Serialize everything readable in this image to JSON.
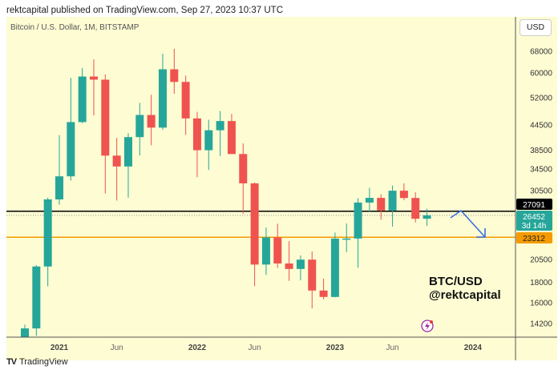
{
  "header": {
    "published": "rektcapital published on TradingView.com, Sep 27, 2023 10:37 UTC"
  },
  "chart": {
    "symbol": "Bitcoin / U.S. Dollar, 1M, BITSTAMP",
    "currency_button": "USD",
    "annotation_line1": "BTC/USD",
    "annotation_line2": "@rektcapital",
    "footer_brand": "TradingView"
  },
  "chart_data": {
    "type": "candlestick",
    "scale": "log",
    "ylim": [
      13500,
      72000
    ],
    "price_ticks": [
      "68000",
      "60000",
      "52000",
      "44500",
      "38500",
      "34500",
      "30500",
      "20500",
      "18000",
      "16000",
      "14200"
    ],
    "x_ticks": [
      {
        "label": "2021",
        "month": "2021-01"
      },
      {
        "label": "Jun",
        "month": "2021-06"
      },
      {
        "label": "2022",
        "month": "2022-01"
      },
      {
        "label": "Jun",
        "month": "2022-06"
      },
      {
        "label": "2023",
        "month": "2023-01"
      },
      {
        "label": "Jun",
        "month": "2023-06"
      },
      {
        "label": "2024",
        "month": "2024-01"
      }
    ],
    "candles": [
      {
        "m": "2020-10",
        "o": 10780,
        "h": 14100,
        "l": 10380,
        "c": 13800
      },
      {
        "m": "2020-11",
        "o": 13800,
        "h": 19860,
        "l": 13220,
        "c": 19710
      },
      {
        "m": "2020-12",
        "o": 19710,
        "h": 29300,
        "l": 17580,
        "c": 28990
      },
      {
        "m": "2021-01",
        "o": 28990,
        "h": 41950,
        "l": 28130,
        "c": 33110
      },
      {
        "m": "2021-02",
        "o": 33110,
        "h": 58350,
        "l": 32300,
        "c": 45240
      },
      {
        "m": "2021-03",
        "o": 45240,
        "h": 61780,
        "l": 44960,
        "c": 58800
      },
      {
        "m": "2021-04",
        "o": 58800,
        "h": 64900,
        "l": 47000,
        "c": 57750
      },
      {
        "m": "2021-05",
        "o": 57750,
        "h": 59500,
        "l": 30000,
        "c": 37300
      },
      {
        "m": "2021-06",
        "o": 37300,
        "h": 41300,
        "l": 28800,
        "c": 35040
      },
      {
        "m": "2021-07",
        "o": 35040,
        "h": 42450,
        "l": 29280,
        "c": 41490
      },
      {
        "m": "2021-08",
        "o": 41490,
        "h": 50500,
        "l": 37330,
        "c": 47130
      },
      {
        "m": "2021-09",
        "o": 47130,
        "h": 52920,
        "l": 39600,
        "c": 43820
      },
      {
        "m": "2021-10",
        "o": 43820,
        "h": 67000,
        "l": 43280,
        "c": 61300
      },
      {
        "m": "2021-11",
        "o": 61300,
        "h": 69000,
        "l": 53250,
        "c": 57000
      },
      {
        "m": "2021-12",
        "o": 57000,
        "h": 59100,
        "l": 42000,
        "c": 46200
      },
      {
        "m": "2022-01",
        "o": 46200,
        "h": 47990,
        "l": 32950,
        "c": 38480
      },
      {
        "m": "2022-02",
        "o": 38480,
        "h": 45850,
        "l": 34330,
        "c": 43160
      },
      {
        "m": "2022-03",
        "o": 43160,
        "h": 48200,
        "l": 37200,
        "c": 45510
      },
      {
        "m": "2022-04",
        "o": 45510,
        "h": 47440,
        "l": 37700,
        "c": 37640
      },
      {
        "m": "2022-05",
        "o": 37640,
        "h": 40000,
        "l": 26700,
        "c": 31800
      },
      {
        "m": "2022-06",
        "o": 31800,
        "h": 31960,
        "l": 17600,
        "c": 19930
      },
      {
        "m": "2022-07",
        "o": 19930,
        "h": 24660,
        "l": 18780,
        "c": 23300
      },
      {
        "m": "2022-08",
        "o": 23300,
        "h": 25200,
        "l": 19540,
        "c": 20050
      },
      {
        "m": "2022-09",
        "o": 20050,
        "h": 22800,
        "l": 18150,
        "c": 19430
      },
      {
        "m": "2022-10",
        "o": 19430,
        "h": 21000,
        "l": 18200,
        "c": 20500
      },
      {
        "m": "2022-11",
        "o": 20500,
        "h": 21480,
        "l": 15480,
        "c": 17160
      },
      {
        "m": "2022-12",
        "o": 17160,
        "h": 18380,
        "l": 16300,
        "c": 16540
      },
      {
        "m": "2023-01",
        "o": 16540,
        "h": 23960,
        "l": 16500,
        "c": 23140
      },
      {
        "m": "2023-02",
        "o": 23140,
        "h": 25250,
        "l": 21400,
        "c": 23150
      },
      {
        "m": "2023-03",
        "o": 23150,
        "h": 29200,
        "l": 19570,
        "c": 28470
      },
      {
        "m": "2023-04",
        "o": 28470,
        "h": 31000,
        "l": 26950,
        "c": 29250
      },
      {
        "m": "2023-05",
        "o": 29250,
        "h": 29840,
        "l": 25800,
        "c": 27200
      },
      {
        "m": "2023-06",
        "o": 27200,
        "h": 31400,
        "l": 24800,
        "c": 30480
      },
      {
        "m": "2023-07",
        "o": 30480,
        "h": 31800,
        "l": 28860,
        "c": 29230
      },
      {
        "m": "2023-08",
        "o": 29230,
        "h": 30200,
        "l": 25400,
        "c": 25940
      },
      {
        "m": "2023-09",
        "o": 25940,
        "h": 27480,
        "l": 24900,
        "c": 26452
      }
    ],
    "horizontal_lines": [
      {
        "price": 27091,
        "label": "27091",
        "color": "#000000"
      },
      {
        "price": 23312,
        "label": "23312",
        "color": "#f59a00"
      }
    ],
    "last_price": {
      "label": "26452",
      "countdown": "3d 14h",
      "color": "#26a69a"
    },
    "colors": {
      "up": "#26a69a",
      "down": "#ef5350",
      "background": "#fdfcd3",
      "arrow": "#3b6fe0"
    }
  }
}
